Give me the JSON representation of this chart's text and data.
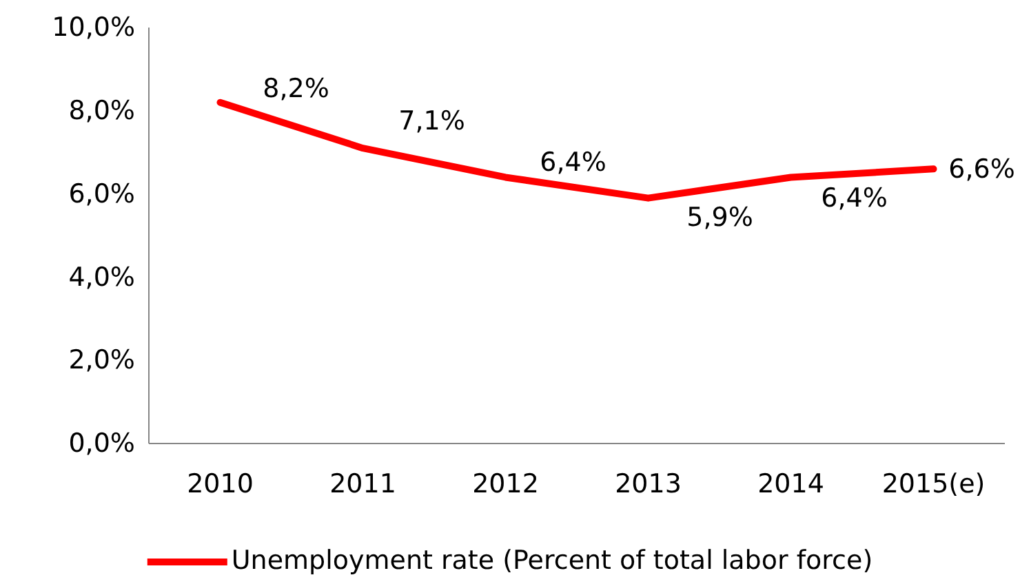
{
  "chart_data": {
    "type": "line",
    "categories": [
      "2010",
      "2011",
      "2012",
      "2013",
      "2014",
      "2015(e)"
    ],
    "series": [
      {
        "name": "Unemployment rate (Percent of total labor force)",
        "color": "#ff0000",
        "values": [
          8.2,
          7.1,
          6.4,
          5.9,
          6.4,
          6.6
        ],
        "value_labels": [
          "8,2%",
          "7,1%",
          "6,4%",
          "5,9%",
          "6,4%",
          "6,6%"
        ]
      }
    ],
    "ylim": [
      0,
      10
    ],
    "yticks": [
      {
        "value": 0,
        "label": "0,0%"
      },
      {
        "value": 2,
        "label": "2,0%"
      },
      {
        "value": 4,
        "label": "4,0%"
      },
      {
        "value": 6,
        "label": "6,0%"
      },
      {
        "value": 8,
        "label": "8,0%"
      },
      {
        "value": 10,
        "label": "10,0%"
      }
    ],
    "grid": false,
    "legend": "bottom",
    "marker": "none",
    "line_style": "solid"
  }
}
